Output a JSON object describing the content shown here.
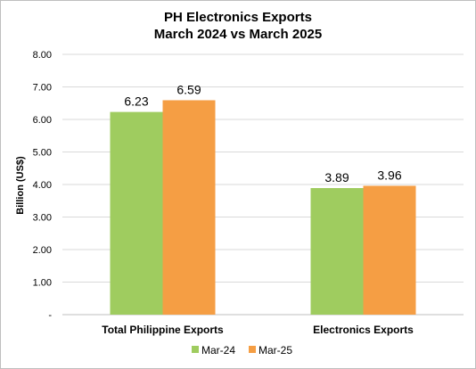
{
  "chart_data": {
    "type": "bar",
    "title_line1": "PH Electronics Exports",
    "title_line2": "March 2024 vs March 2025",
    "ylabel": "Billion (US$)",
    "ylim": [
      0,
      8
    ],
    "yticks": [
      "-",
      "1.00",
      "2.00",
      "3.00",
      "4.00",
      "5.00",
      "6.00",
      "7.00",
      "8.00"
    ],
    "grid": true,
    "legend_position": "bottom",
    "categories": [
      "Total Philippine Exports",
      "Electronics Exports"
    ],
    "series": [
      {
        "name": "Mar-24",
        "color": "#9fcc5f",
        "values": [
          6.23,
          3.89
        ],
        "labels": [
          "6.23",
          "3.89"
        ]
      },
      {
        "name": "Mar-25",
        "color": "#f59e44",
        "values": [
          6.59,
          3.96
        ],
        "labels": [
          "6.59",
          "3.96"
        ]
      }
    ]
  }
}
